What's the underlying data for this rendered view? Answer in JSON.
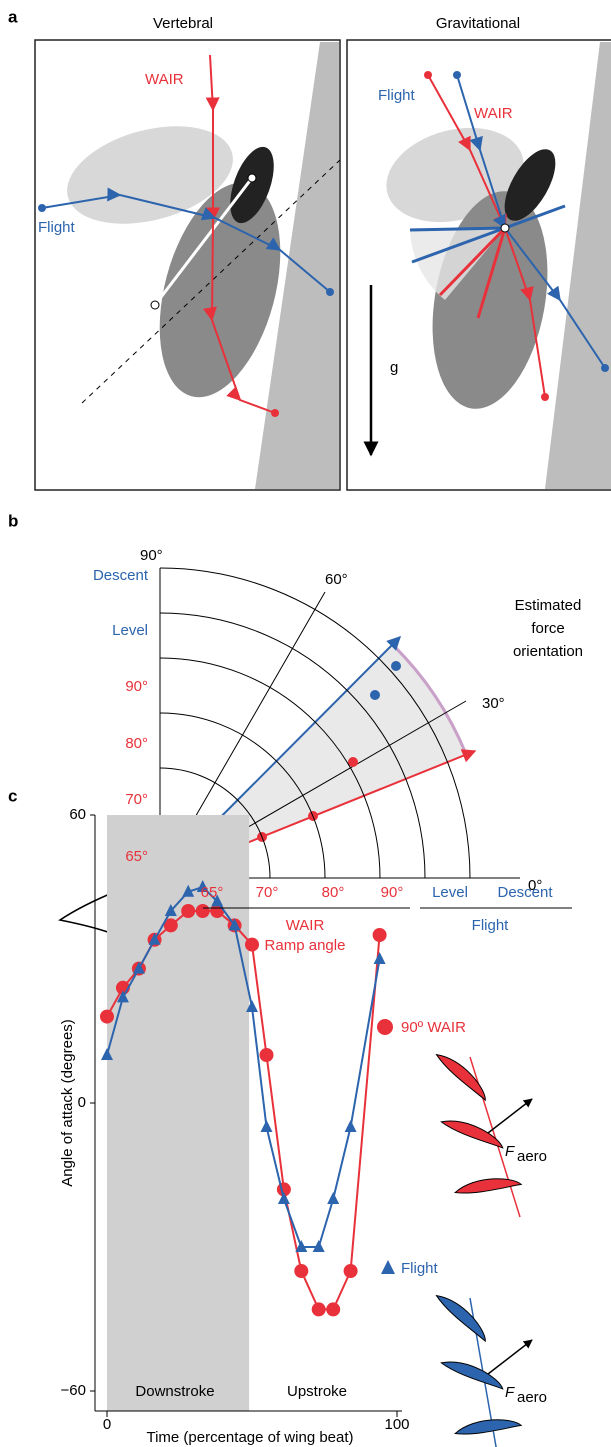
{
  "panel_a": {
    "label": "a",
    "titles": [
      "Vertebral",
      "Gravitational"
    ],
    "left": {
      "wair": "WAIR",
      "flight": "Flight"
    },
    "right": {
      "flight": "Flight",
      "wair": "WAIR",
      "gravity": "g"
    }
  },
  "panel_b": {
    "label": "b",
    "vertical_labels": [
      "90°",
      "Descent",
      "Level",
      "90°",
      "80°",
      "70°",
      "65°"
    ],
    "angle_labels": [
      "60°",
      "30°",
      "0°"
    ],
    "note": [
      "Estimated",
      "force",
      "orientation"
    ],
    "bottom_labels": [
      "65°",
      "70°",
      "80°",
      "90°",
      "Level",
      "Descent"
    ],
    "wair_label": [
      "WAIR",
      "Ramp angle"
    ],
    "flight_label": "Flight"
  },
  "panel_c_label": "c",
  "chart_data": {
    "type": "line",
    "xlabel": "Time (percentage of wing beat)",
    "ylabel": "Angle of attack (degrees)",
    "x": [
      0,
      5.5,
      11,
      16.4,
      22,
      28,
      33,
      38,
      44,
      50,
      55,
      61,
      67,
      73,
      78,
      84,
      94
    ],
    "series": [
      {
        "name": "90º WAIR",
        "color": "#e8313a",
        "marker": "circle",
        "values": [
          18,
          24,
          28,
          34,
          37,
          40,
          40,
          40,
          37,
          33,
          10,
          -18,
          -35,
          -43,
          -43,
          -35,
          35
        ]
      },
      {
        "name": "Flight",
        "color": "#2c64ad",
        "marker": "triangle",
        "values": [
          10,
          22,
          28,
          34,
          40,
          44,
          45,
          42,
          37,
          20,
          -5,
          -20,
          -30,
          -30,
          -20,
          -5,
          30
        ]
      }
    ],
    "xlim": [
      0,
      100
    ],
    "ylim": [
      -60,
      60
    ],
    "xticks": [
      0,
      100
    ],
    "yticks": [
      60,
      0,
      {
        "value": -60,
        "label": "−60"
      }
    ],
    "shaded_xlim": [
      0,
      49
    ],
    "annotations": [
      "Downstroke",
      "Upstroke"
    ],
    "force_label": {
      "main": "F",
      "sub": "aero"
    }
  }
}
